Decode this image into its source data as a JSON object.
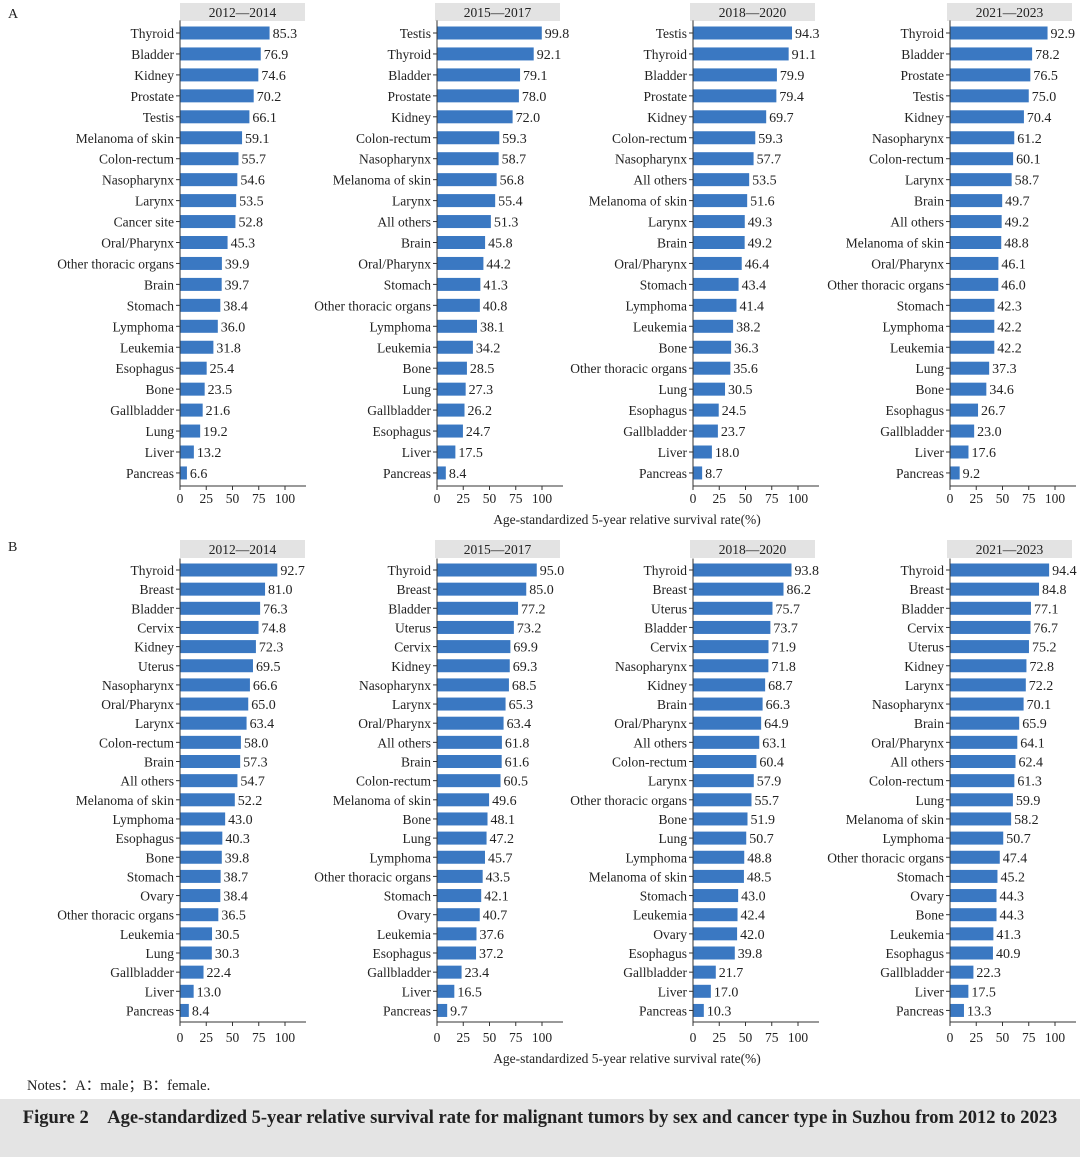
{
  "chart_data": {
    "type": "bar",
    "orientation": "horizontal",
    "xlabel": "Age-standardized 5-year relative survival rate(%)",
    "xlim": [
      0,
      120
    ],
    "xticks": [
      0,
      25,
      50,
      75,
      100
    ],
    "panels": [
      {
        "label": "A",
        "subplots": [
          {
            "period": "2012—2014",
            "categories": [
              "Thyroid",
              "Bladder",
              "Kidney",
              "Prostate",
              "Testis",
              "Melanoma of skin",
              "Colon-rectum",
              "Nasopharynx",
              "Larynx",
              "Cancer site",
              "Oral/Pharynx",
              "Other thoracic organs",
              "Brain",
              "Stomach",
              "Lymphoma",
              "Leukemia",
              "Esophagus",
              "Bone",
              "Gallbladder",
              "Lung",
              "Liver",
              "Pancreas"
            ],
            "values": [
              "85.3",
              "76.9",
              "74.6",
              "70.2",
              "66.1",
              "59.1",
              "55.7",
              "54.6",
              "53.5",
              "52.8",
              "45.3",
              "39.9",
              "39.7",
              "38.4",
              "36.0",
              "31.8",
              "25.4",
              "23.5",
              "21.6",
              "19.2",
              "13.2",
              "6.6"
            ]
          },
          {
            "period": "2015—2017",
            "categories": [
              "Testis",
              "Thyroid",
              "Bladder",
              "Prostate",
              "Kidney",
              "Colon-rectum",
              "Nasopharynx",
              "Melanoma of skin",
              "Larynx",
              "All others",
              "Brain",
              "Oral/Pharynx",
              "Stomach",
              "Other thoracic organs",
              "Lymphoma",
              "Leukemia",
              "Bone",
              "Lung",
              "Gallbladder",
              "Esophagus",
              "Liver",
              "Pancreas"
            ],
            "values": [
              "99.8",
              "92.1",
              "79.1",
              "78.0",
              "72.0",
              "59.3",
              "58.7",
              "56.8",
              "55.4",
              "51.3",
              "45.8",
              "44.2",
              "41.3",
              "40.8",
              "38.1",
              "34.2",
              "28.5",
              "27.3",
              "26.2",
              "24.7",
              "17.5",
              "8.4"
            ]
          },
          {
            "period": "2018—2020",
            "categories": [
              "Testis",
              "Thyroid",
              "Bladder",
              "Prostate",
              "Kidney",
              "Colon-rectum",
              "Nasopharynx",
              "All others",
              "Melanoma of skin",
              "Larynx",
              "Brain",
              "Oral/Pharynx",
              "Stomach",
              "Lymphoma",
              "Leukemia",
              "Bone",
              "Other thoracic organs",
              "Lung",
              "Esophagus",
              "Gallbladder",
              "Liver",
              "Pancreas"
            ],
            "values": [
              "94.3",
              "91.1",
              "79.9",
              "79.4",
              "69.7",
              "59.3",
              "57.7",
              "53.5",
              "51.6",
              "49.3",
              "49.2",
              "46.4",
              "43.4",
              "41.4",
              "38.2",
              "36.3",
              "35.6",
              "30.5",
              "24.5",
              "23.7",
              "18.0",
              "8.7"
            ]
          },
          {
            "period": "2021—2023",
            "categories": [
              "Thyroid",
              "Bladder",
              "Prostate",
              "Testis",
              "Kidney",
              "Nasopharynx",
              "Colon-rectum",
              "Larynx",
              "Brain",
              "All others",
              "Melanoma of skin",
              "Oral/Pharynx",
              "Other thoracic organs",
              "Stomach",
              "Lymphoma",
              "Leukemia",
              "Lung",
              "Bone",
              "Esophagus",
              "Gallbladder",
              "Liver",
              "Pancreas"
            ],
            "values": [
              "92.9",
              "78.2",
              "76.5",
              "75.0",
              "70.4",
              "61.2",
              "60.1",
              "58.7",
              "49.7",
              "49.2",
              "48.8",
              "46.1",
              "46.0",
              "42.3",
              "42.2",
              "42.2",
              "37.3",
              "34.6",
              "26.7",
              "23.0",
              "17.6",
              "9.2"
            ]
          }
        ]
      },
      {
        "label": "B",
        "subplots": [
          {
            "period": "2012—2014",
            "categories": [
              "Thyroid",
              "Breast",
              "Bladder",
              "Cervix",
              "Kidney",
              "Uterus",
              "Nasopharynx",
              "Oral/Pharynx",
              "Larynx",
              "Colon-rectum",
              "Brain",
              "All others",
              "Melanoma of skin",
              "Lymphoma",
              "Esophagus",
              "Bone",
              "Stomach",
              "Ovary",
              "Other thoracic organs",
              "Leukemia",
              "Lung",
              "Gallbladder",
              "Liver",
              "Pancreas"
            ],
            "values": [
              "92.7",
              "81.0",
              "76.3",
              "74.8",
              "72.3",
              "69.5",
              "66.6",
              "65.0",
              "63.4",
              "58.0",
              "57.3",
              "54.7",
              "52.2",
              "43.0",
              "40.3",
              "39.8",
              "38.7",
              "38.4",
              "36.5",
              "30.5",
              "30.3",
              "22.4",
              "13.0",
              "8.4"
            ]
          },
          {
            "period": "2015—2017",
            "categories": [
              "Thyroid",
              "Breast",
              "Bladder",
              "Uterus",
              "Cervix",
              "Kidney",
              "Nasopharynx",
              "Larynx",
              "Oral/Pharynx",
              "All others",
              "Brain",
              "Colon-rectum",
              "Melanoma of skin",
              "Bone",
              "Lung",
              "Lymphoma",
              "Other thoracic organs",
              "Stomach",
              "Ovary",
              "Leukemia",
              "Esophagus",
              "Gallbladder",
              "Liver",
              "Pancreas"
            ],
            "values": [
              "95.0",
              "85.0",
              "77.2",
              "73.2",
              "69.9",
              "69.3",
              "68.5",
              "65.3",
              "63.4",
              "61.8",
              "61.6",
              "60.5",
              "49.6",
              "48.1",
              "47.2",
              "45.7",
              "43.5",
              "42.1",
              "40.7",
              "37.6",
              "37.2",
              "23.4",
              "16.5",
              "9.7"
            ]
          },
          {
            "period": "2018—2020",
            "categories": [
              "Thyroid",
              "Breast",
              "Uterus",
              "Bladder",
              "Cervix",
              "Nasopharynx",
              "Kidney",
              "Brain",
              "Oral/Pharynx",
              "All others",
              "Colon-rectum",
              "Larynx",
              "Other thoracic organs",
              "Bone",
              "Lung",
              "Lymphoma",
              "Melanoma of skin",
              "Stomach",
              "Leukemia",
              "Ovary",
              "Esophagus",
              "Gallbladder",
              "Liver",
              "Pancreas"
            ],
            "values": [
              "93.8",
              "86.2",
              "75.7",
              "73.7",
              "71.9",
              "71.8",
              "68.7",
              "66.3",
              "64.9",
              "63.1",
              "60.4",
              "57.9",
              "55.7",
              "51.9",
              "50.7",
              "48.8",
              "48.5",
              "43.0",
              "42.4",
              "42.0",
              "39.8",
              "21.7",
              "17.0",
              "10.3"
            ]
          },
          {
            "period": "2021—2023",
            "categories": [
              "Thyroid",
              "Breast",
              "Bladder",
              "Cervix",
              "Uterus",
              "Kidney",
              "Larynx",
              "Nasopharynx",
              "Brain",
              "Oral/Pharynx",
              "All others",
              "Colon-rectum",
              "Lung",
              "Melanoma of skin",
              "Lymphoma",
              "Other thoracic organs",
              "Stomach",
              "Ovary",
              "Bone",
              "Leukemia",
              "Esophagus",
              "Gallbladder",
              "Liver",
              "Pancreas"
            ],
            "values": [
              "94.4",
              "84.8",
              "77.1",
              "76.7",
              "75.2",
              "72.8",
              "72.2",
              "70.1",
              "65.9",
              "64.1",
              "62.4",
              "61.3",
              "59.9",
              "58.2",
              "50.7",
              "47.4",
              "45.2",
              "44.3",
              "44.3",
              "41.3",
              "40.9",
              "22.3",
              "17.5",
              "13.3"
            ]
          }
        ]
      }
    ]
  },
  "notes": "Notes：A：male；B：female.",
  "caption": "Figure 2　Age-standardized 5-year relative survival rate for malignant tumors by sex and cancer type in Suzhou from 2012 to 2023",
  "colors": {
    "bar": "#3a78c2",
    "strip": "#e3e3e3",
    "axis": "#333333",
    "caption_bg": "#e4e4e4"
  }
}
